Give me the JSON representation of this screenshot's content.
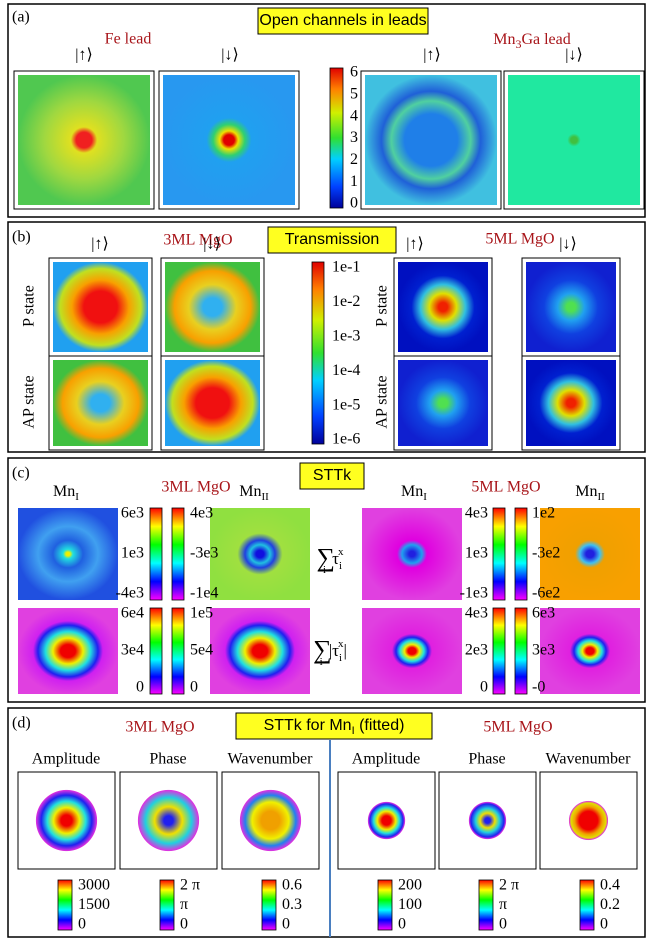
{
  "panel_a": {
    "label": "(a)",
    "title": "Open channels in leads",
    "fe_lead": "Fe lead",
    "mn3ga_lead": [
      "Mn",
      "3",
      "Ga lead"
    ],
    "spin_labels": [
      "|↑⟩",
      "|↓⟩",
      "|↑⟩",
      "|↓⟩"
    ],
    "colorbar_ticks": [
      "6",
      "5",
      "4",
      "3",
      "2",
      "1",
      "0"
    ]
  },
  "panel_b": {
    "label": "(b)",
    "title": "Transmission",
    "left_title": "3ML MgO",
    "right_title": "5ML MgO",
    "spin_labels": [
      "|↑⟩",
      "|↓⟩",
      "|↑⟩",
      "|↓⟩"
    ],
    "row_labels": [
      "P state",
      "AP state",
      "P state",
      "AP state"
    ],
    "colorbar_ticks": [
      "1e-1",
      "1e-2",
      "1e-3",
      "1e-4",
      "1e-5",
      "1e-6"
    ]
  },
  "panel_c": {
    "label": "(c)",
    "title": "STTk",
    "left_title": "3ML MgO",
    "right_title": "5ML MgO",
    "column_labels": [
      [
        "Mn",
        "I"
      ],
      [
        "Mn",
        "II"
      ],
      [
        "Mn",
        "I"
      ],
      [
        "Mn",
        "II"
      ]
    ],
    "formulas": [
      [
        "∑",
        "i",
        "τ",
        "i",
        "x"
      ],
      [
        "∑",
        "i",
        "|τ",
        "i",
        "x",
        "|"
      ]
    ],
    "colorbars": [
      [
        "6e3",
        "1e3",
        "-4e3"
      ],
      [
        "4e3",
        "-3e3",
        "-1e4"
      ],
      [
        "6e4",
        "3e4",
        "0"
      ],
      [
        "1e5",
        "5e4",
        "0"
      ],
      [
        "4e3",
        "1e3",
        "-1e3"
      ],
      [
        "1e2",
        "-3e2",
        "-6e2"
      ],
      [
        "4e3",
        "2e3",
        "0"
      ],
      [
        "6e3",
        "3e3",
        "-0"
      ]
    ]
  },
  "panel_d": {
    "label": "(d)",
    "title": [
      "STTk for Mn",
      "I",
      " (fitted)"
    ],
    "left_title": "3ML MgO",
    "right_title": "5ML MgO",
    "column_labels": [
      "Amplitude",
      "Phase",
      "Wavenumber",
      "Amplitude",
      "Phase",
      "Wavenumber"
    ],
    "colorbars": [
      [
        "3000",
        "1500",
        "0"
      ],
      [
        "2 π",
        "π",
        "0"
      ],
      [
        "0.6",
        "0.3",
        "0"
      ],
      [
        "200",
        "100",
        "0"
      ],
      [
        "2 π",
        "π",
        "0"
      ],
      [
        "0.4",
        "0.2",
        "0"
      ]
    ]
  }
}
